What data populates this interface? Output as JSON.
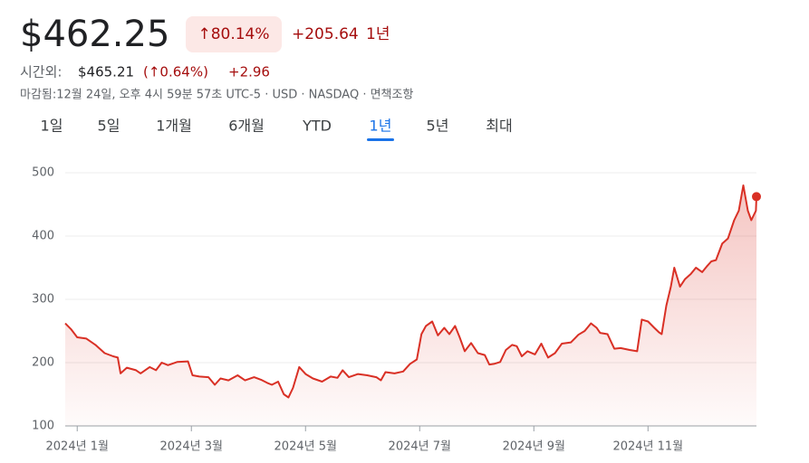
{
  "header": {
    "price": "$462.25",
    "change_pct": "↑80.14%",
    "change": "+205.64",
    "period": "1년",
    "after_hours_label": "시간외:",
    "after_hours_price": "$465.21",
    "after_hours_pct": "(↑0.64%)",
    "after_hours_change": "+2.96",
    "disclaimer": "마감됨:12월 24일, 오후 4시 59분 57초 UTC-5 · USD · NASDAQ · 면책조항"
  },
  "tabs": [
    "1일",
    "5일",
    "1개월",
    "6개월",
    "YTD",
    "1년",
    "5년",
    "최대"
  ],
  "selected_tab": 5,
  "chart_data": {
    "type": "line",
    "color": "#d93025",
    "grid": true,
    "x": [
      0.79,
      0.89,
      1.0,
      1.16,
      1.32,
      1.48,
      1.63,
      1.71,
      1.76,
      1.87,
      2.03,
      2.11,
      2.27,
      2.38,
      2.48,
      2.59,
      2.75,
      2.94,
      3.02,
      3.14,
      3.3,
      3.41,
      3.51,
      3.65,
      3.81,
      3.94,
      4.1,
      4.22,
      4.33,
      4.41,
      4.52,
      4.62,
      4.7,
      4.78,
      4.89,
      5.0,
      5.13,
      5.29,
      5.44,
      5.56,
      5.65,
      5.76,
      5.92,
      6.08,
      6.24,
      6.32,
      6.4,
      6.56,
      6.71,
      6.83,
      6.95,
      7.03,
      7.11,
      7.22,
      7.32,
      7.43,
      7.52,
      7.62,
      7.7,
      7.79,
      7.9,
      8.02,
      8.14,
      8.22,
      8.3,
      8.41,
      8.51,
      8.62,
      8.7,
      8.79,
      8.89,
      9.02,
      9.13,
      9.25,
      9.37,
      9.49,
      9.65,
      9.78,
      9.89,
      10.0,
      10.1,
      10.16,
      10.29,
      10.41,
      10.52,
      10.68,
      10.81,
      10.89,
      11.0,
      11.11,
      11.19,
      11.24,
      11.32,
      11.4,
      11.46,
      11.56,
      11.65,
      11.75,
      11.84,
      11.95,
      12.03,
      12.11,
      12.19,
      12.3,
      12.4,
      12.51,
      12.59,
      12.67,
      12.75,
      12.81,
      12.89,
      12.9
    ],
    "values": [
      262,
      253,
      240,
      238,
      228,
      215,
      210,
      208,
      183,
      192,
      188,
      183,
      193,
      188,
      200,
      196,
      201,
      202,
      180,
      178,
      177,
      165,
      175,
      172,
      180,
      172,
      177,
      173,
      168,
      165,
      170,
      150,
      145,
      160,
      193,
      182,
      175,
      170,
      178,
      176,
      188,
      177,
      182,
      180,
      177,
      172,
      185,
      183,
      186,
      198,
      205,
      245,
      258,
      265,
      243,
      255,
      245,
      258,
      240,
      218,
      231,
      215,
      212,
      197,
      198,
      201,
      220,
      228,
      226,
      210,
      218,
      213,
      230,
      208,
      215,
      230,
      232,
      244,
      250,
      262,
      255,
      247,
      245,
      222,
      223,
      220,
      218,
      268,
      265,
      255,
      248,
      245,
      290,
      320,
      350,
      320,
      332,
      340,
      350,
      343,
      352,
      360,
      362,
      388,
      396,
      425,
      440,
      480,
      440,
      425,
      440,
      462.25
    ],
    "xlim": [
      0.79,
      12.9
    ],
    "ylim": [
      100,
      500
    ],
    "xticks": [
      {
        "value": 1,
        "label": "2024년 1월"
      },
      {
        "value": 3,
        "label": "2024년 3월"
      },
      {
        "value": 5,
        "label": "2024년 5월"
      },
      {
        "value": 7,
        "label": "2024년 7월"
      },
      {
        "value": 9,
        "label": "2024년 9월"
      },
      {
        "value": 11,
        "label": "2024년 11월"
      }
    ],
    "yticks": [
      100,
      200,
      300,
      400,
      500
    ]
  }
}
